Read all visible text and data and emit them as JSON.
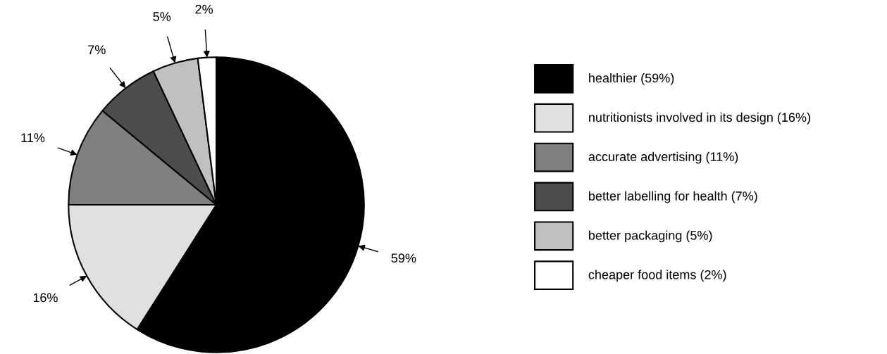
{
  "chart_data": {
    "type": "pie",
    "categories": [
      "healthier (59%)",
      "nutritionists involved in its design (16%)",
      "accurate advertising (11%)",
      "better labelling for health (7%)",
      "better packaging (5%)",
      "cheaper food items (2%)"
    ],
    "values": [
      59,
      16,
      11,
      7,
      5,
      2
    ],
    "value_labels": [
      "59%",
      "16%",
      "11%",
      "7%",
      "5%",
      "2%"
    ],
    "colors": [
      "#000000",
      "#e0e0e0",
      "#808080",
      "#4d4d4d",
      "#c0c0c0",
      "#ffffff"
    ],
    "legend": "right"
  }
}
